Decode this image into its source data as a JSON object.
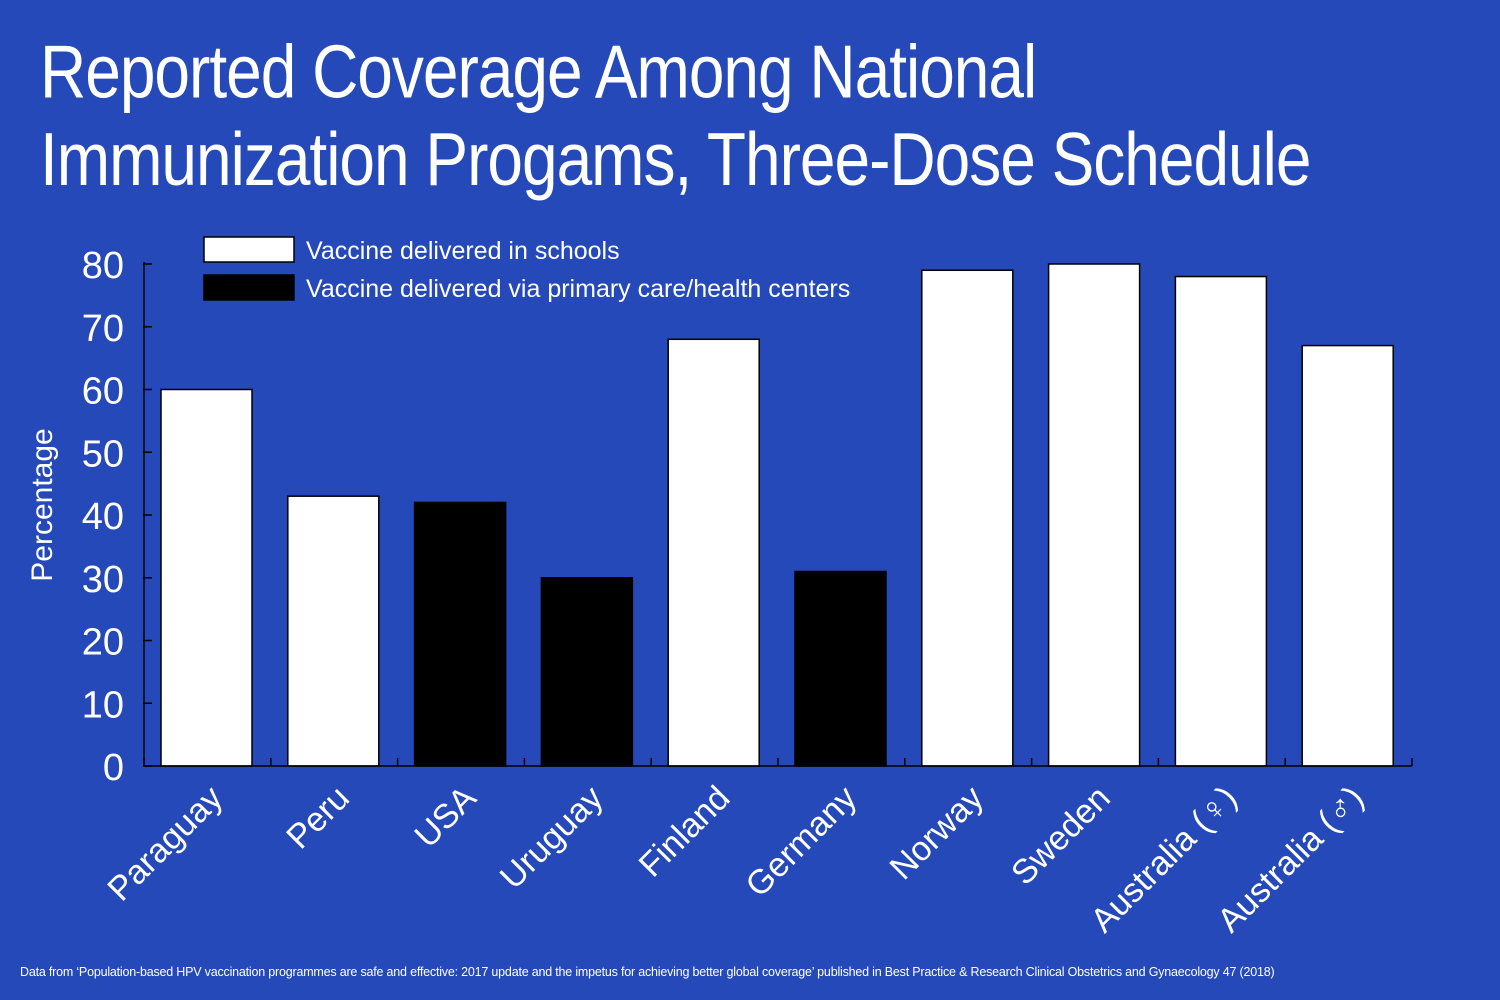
{
  "header": {
    "title_line1": "Reported Coverage Among National",
    "title_line2": "Immunization Progams, Three-Dose Schedule"
  },
  "colors": {
    "background": "#2549b9",
    "schools": "#ffffff",
    "primary_care": "#000000"
  },
  "chart_data": {
    "type": "bar",
    "categories": [
      "Paraguay",
      "Peru",
      "USA",
      "Uruguay",
      "Finland",
      "Germany",
      "Norway",
      "Sweden",
      "Australia (♀)",
      "Australia (♂)"
    ],
    "values": [
      60,
      43,
      42,
      30,
      68,
      31,
      79,
      80,
      78,
      67
    ],
    "delivery": [
      "schools",
      "schools",
      "primary_care",
      "primary_care",
      "schools",
      "primary_care",
      "schools",
      "schools",
      "schools",
      "schools"
    ],
    "legend": [
      {
        "key": "schools",
        "label": "Vaccine delivered in schools"
      },
      {
        "key": "primary_care",
        "label": "Vaccine delivered via primary care/health centers"
      }
    ],
    "ylabel": "Percentage",
    "ylim": [
      0,
      80
    ],
    "yticks": [
      0,
      10,
      20,
      30,
      40,
      50,
      60,
      70,
      80
    ],
    "legend_position": "top-left",
    "grid": false
  },
  "footer": {
    "source": "Data from ‘Population-based HPV vaccination programmes are safe and effective: 2017 update and the impetus for achieving better global coverage’ published in Best Practice & Research Clinical Obstetrics and Gynaecology 47 (2018)"
  }
}
